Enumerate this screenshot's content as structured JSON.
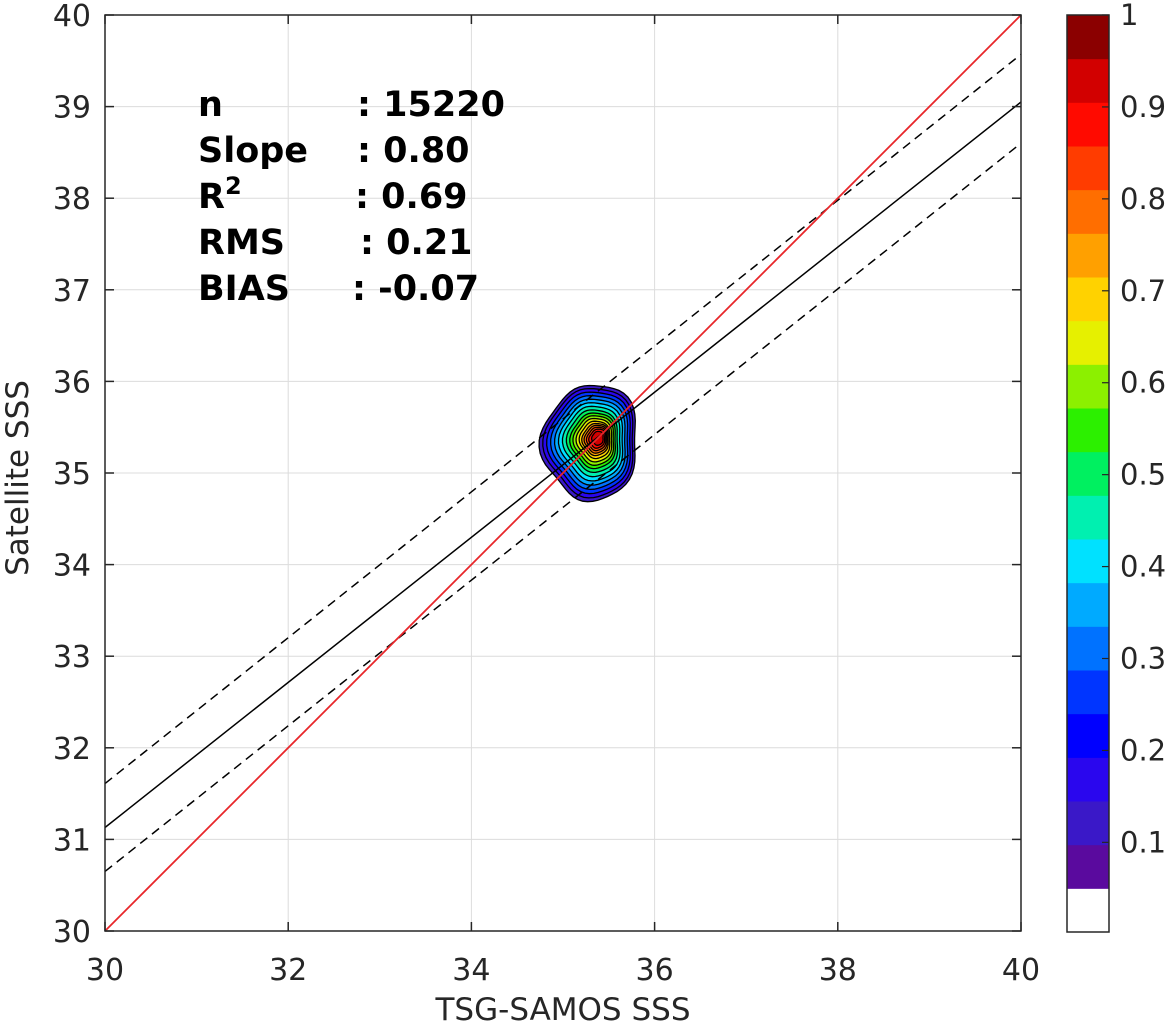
{
  "chart_data": {
    "type": "scatter",
    "subtype": "density-contour",
    "xlabel": "TSG-SAMOS SSS",
    "ylabel": "Satellite SSS",
    "xlim": [
      30,
      40
    ],
    "ylim": [
      30,
      40
    ],
    "xticks": [
      "30",
      "32",
      "34",
      "36",
      "38",
      "40"
    ],
    "yticks": [
      "30",
      "31",
      "32",
      "33",
      "34",
      "35",
      "36",
      "37",
      "38",
      "39",
      "40"
    ],
    "grid": true,
    "stats": [
      {
        "label": "n",
        "sup": "",
        "value": ": 15220"
      },
      {
        "label": "Slope",
        "sup": "",
        "value": ": 0.80"
      },
      {
        "label": "R",
        "sup": "2",
        "value": ": 0.69"
      },
      {
        "label": "RMS",
        "sup": "",
        "value": ": 0.21"
      },
      {
        "label": "BIAS",
        "sup": "",
        "value": ": -0.07"
      }
    ],
    "lines": {
      "one_to_one": {
        "color": "#e8262a",
        "points": [
          [
            30,
            30
          ],
          [
            40,
            40
          ]
        ]
      },
      "fit": {
        "color": "#000000",
        "points": [
          [
            30,
            31.13
          ],
          [
            40,
            39.05
          ]
        ]
      },
      "fit_upper": {
        "color": "#000000",
        "dash": true,
        "points": [
          [
            30,
            31.61
          ],
          [
            40,
            39.57
          ]
        ]
      },
      "fit_lower": {
        "color": "#000000",
        "dash": true,
        "points": [
          [
            30,
            30.65
          ],
          [
            40,
            38.6
          ]
        ]
      }
    },
    "density_peak": [
      35.38,
      35.38
    ],
    "contour_levels": [
      {
        "level": 0.05,
        "rx": 0.58,
        "ry": 0.76,
        "color": "#3a18c8"
      },
      {
        "level": 0.1,
        "rx": 0.54,
        "ry": 0.72,
        "color": "#2a06ee"
      },
      {
        "level": 0.15,
        "rx": 0.5,
        "ry": 0.67,
        "color": "#0035ff"
      },
      {
        "level": 0.2,
        "rx": 0.46,
        "ry": 0.62,
        "color": "#0072ff"
      },
      {
        "level": 0.25,
        "rx": 0.42,
        "ry": 0.57,
        "color": "#00aaff"
      },
      {
        "level": 0.3,
        "rx": 0.38,
        "ry": 0.52,
        "color": "#00e1ff"
      },
      {
        "level": 0.35,
        "rx": 0.34,
        "ry": 0.47,
        "color": "#00f0b0"
      },
      {
        "level": 0.4,
        "rx": 0.3,
        "ry": 0.42,
        "color": "#00f060"
      },
      {
        "level": 0.45,
        "rx": 0.27,
        "ry": 0.37,
        "color": "#2cf000"
      },
      {
        "level": 0.5,
        "rx": 0.24,
        "ry": 0.33,
        "color": "#8cf000"
      },
      {
        "level": 0.55,
        "rx": 0.21,
        "ry": 0.29,
        "color": "#e6f000"
      },
      {
        "level": 0.6,
        "rx": 0.18,
        "ry": 0.25,
        "color": "#ffd200"
      },
      {
        "level": 0.65,
        "rx": 0.16,
        "ry": 0.21,
        "color": "#ffa000"
      },
      {
        "level": 0.7,
        "rx": 0.14,
        "ry": 0.18,
        "color": "#ff6e00"
      },
      {
        "level": 0.75,
        "rx": 0.12,
        "ry": 0.15,
        "color": "#ff3c00"
      },
      {
        "level": 0.8,
        "rx": 0.1,
        "ry": 0.12,
        "color": "#ff0a00"
      },
      {
        "level": 0.85,
        "rx": 0.07,
        "ry": 0.09,
        "color": "#d20000"
      }
    ],
    "colorbar": {
      "ticks": [
        "0.1",
        "0.2",
        "0.3",
        "0.4",
        "0.5",
        "0.6",
        "0.7",
        "0.8",
        "0.9",
        "1"
      ],
      "tick_values": [
        0.1,
        0.2,
        0.3,
        0.4,
        0.5,
        0.6,
        0.7,
        0.8,
        0.9,
        1.0
      ],
      "colors": [
        "#ffffff",
        "#5a0a9e",
        "#3a18c8",
        "#2a06ee",
        "#0000ff",
        "#0035ff",
        "#0072ff",
        "#00aaff",
        "#00e1ff",
        "#00f0b0",
        "#00f060",
        "#2cf000",
        "#8cf000",
        "#e6f000",
        "#ffd200",
        "#ffa000",
        "#ff6e00",
        "#ff3c00",
        "#ff0a00",
        "#d20000",
        "#8b0000"
      ]
    }
  }
}
